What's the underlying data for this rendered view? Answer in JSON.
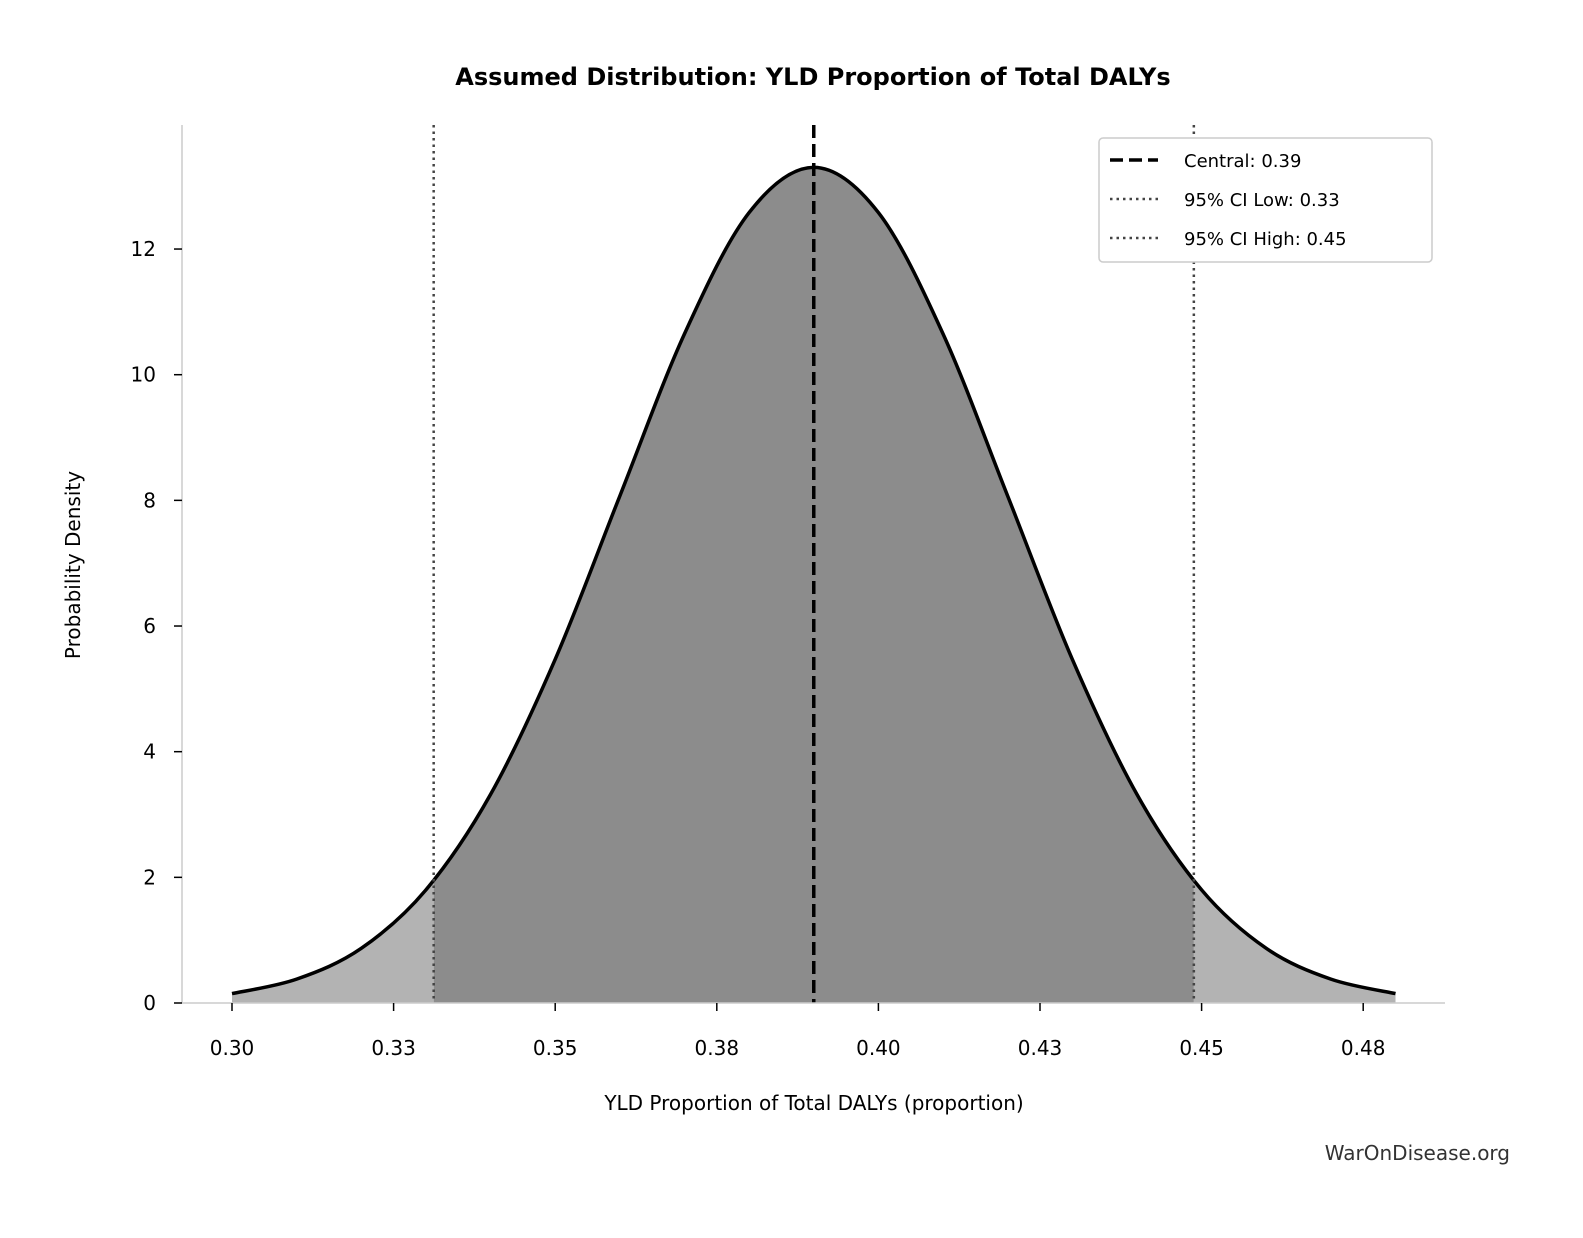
{
  "chart_data": {
    "type": "area",
    "title": "Assumed Distribution: YLD Proportion of Total DALYs",
    "xlabel": "YLD Proportion of Total DALYs (proportion)",
    "ylabel": "Probability Density",
    "xlim": [
      0.29,
      0.49
    ],
    "ylim": [
      0,
      14
    ],
    "xticks": [
      0.3,
      0.325,
      0.35,
      0.375,
      0.4,
      0.425,
      0.45,
      0.475
    ],
    "xtick_labels": [
      "0.30",
      "0.33",
      "0.35",
      "0.38",
      "0.40",
      "0.43",
      "0.45",
      "0.48"
    ],
    "yticks": [
      0,
      2,
      4,
      6,
      8,
      10,
      12
    ],
    "ytick_labels": [
      "0",
      "2",
      "4",
      "6",
      "8",
      "10",
      "12"
    ],
    "grid": false,
    "curve": {
      "x": [
        0.3,
        0.31,
        0.32,
        0.33,
        0.34,
        0.35,
        0.36,
        0.37,
        0.38,
        0.39,
        0.4,
        0.41,
        0.42,
        0.43,
        0.44,
        0.45,
        0.46,
        0.47,
        0.48
      ],
      "y": [
        0.15,
        0.38,
        0.87,
        1.8,
        3.32,
        5.47,
        8.07,
        10.65,
        12.58,
        13.3,
        12.58,
        10.65,
        8.07,
        5.47,
        3.32,
        1.8,
        0.87,
        0.38,
        0.15
      ]
    },
    "reference_lines": [
      {
        "label": "Central: 0.39",
        "value": 0.39,
        "style": "dashed",
        "color": "#000000"
      },
      {
        "label": "95% CI Low: 0.33",
        "value": 0.3312,
        "style": "dotted",
        "color": "#444444"
      },
      {
        "label": "95% CI High: 0.45",
        "value": 0.4488,
        "style": "dotted",
        "color": "#444444"
      }
    ],
    "fill_inside_ci_color": "#8c8c8c",
    "fill_outside_ci_color": "#b3b3b3",
    "legend_position": "top-right"
  },
  "watermark": "WarOnDisease.org"
}
